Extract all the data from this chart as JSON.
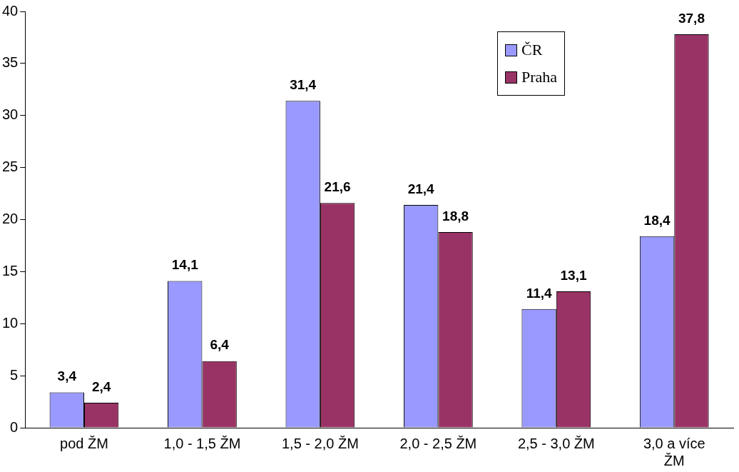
{
  "chart_data": {
    "type": "bar",
    "categories": [
      "pod ŽM",
      "1,0 - 1,5 ŽM",
      "1,5 - 2,0 ŽM",
      "2,0 - 2,5 ŽM",
      "2,5 - 3,0 ŽM",
      "3,0 a více ŽM"
    ],
    "series": [
      {
        "name": "ČR",
        "color": "#9999ff",
        "values": [
          3.4,
          14.1,
          31.4,
          21.4,
          11.4,
          18.4
        ],
        "value_labels": [
          "3,4",
          "14,1",
          "31,4",
          "21,4",
          "11,4",
          "18,4"
        ]
      },
      {
        "name": "Praha",
        "color": "#993366",
        "values": [
          2.4,
          6.4,
          21.6,
          18.8,
          13.1,
          37.8
        ],
        "value_labels": [
          "2,4",
          "6,4",
          "21,6",
          "18,8",
          "13,1",
          "37,8"
        ]
      }
    ],
    "ylim": [
      0,
      40
    ],
    "yticks": [
      0,
      5,
      10,
      15,
      20,
      25,
      30,
      35,
      40
    ],
    "grid": false,
    "legend": "top right"
  }
}
